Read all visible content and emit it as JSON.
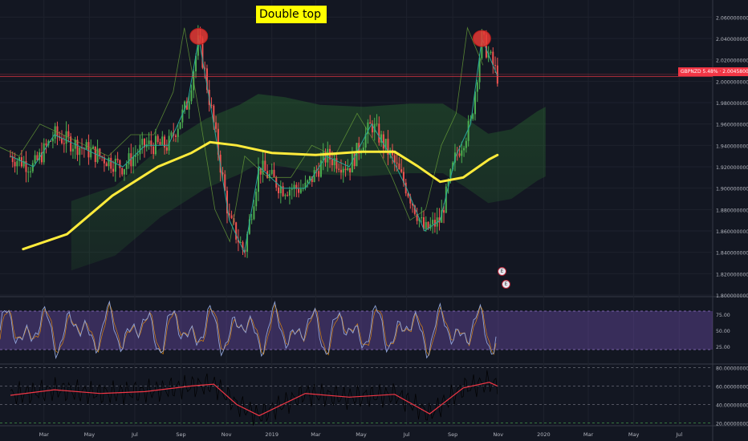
{
  "chart_data": [
    {
      "type": "line",
      "panel": "price",
      "title": "",
      "symbol_label": "GBPNZD 5.48% · 2.00458000",
      "last_value": 2.00458,
      "ylim": [
        1.8,
        2.07
      ],
      "y_tick_labels": [
        "2.060000000",
        "2.040000000",
        "2.020000000",
        "2.000000000",
        "1.980000000",
        "1.960000000",
        "1.940000000",
        "1.920000000",
        "1.900000000",
        "1.880000000",
        "1.860000000",
        "1.840000000",
        "1.820000000",
        "1.800000000"
      ],
      "x_tick_labels": [
        "Mar",
        "May",
        "Jul",
        "Sep",
        "Nov",
        "2019",
        "Mar",
        "May",
        "Jul",
        "Sep",
        "Nov",
        "2020",
        "Mar",
        "May",
        "Jul"
      ],
      "series": [
        {
          "role": "ema-long",
          "color": "#ffeb3b",
          "x": [
            "2018-02-01",
            "2018-04-01",
            "2018-06-01",
            "2018-08-01",
            "2018-09-15",
            "2018-10-10",
            "2018-11-15",
            "2019-01-01",
            "2019-03-01",
            "2019-05-01",
            "2019-06-15",
            "2019-07-15",
            "2019-08-15",
            "2019-09-15",
            "2019-10-20",
            "2019-10-31"
          ],
          "values": [
            1.843,
            1.857,
            1.893,
            1.92,
            1.933,
            1.943,
            1.94,
            1.933,
            1.931,
            1.934,
            1.934,
            1.921,
            1.906,
            1.91,
            1.927,
            1.931
          ]
        },
        {
          "role": "price",
          "color": "#26a69a",
          "x": [
            "2018-01-15",
            "2018-02-15",
            "2018-03-15",
            "2018-04-15",
            "2018-05-15",
            "2018-06-15",
            "2018-07-15",
            "2018-08-15",
            "2018-09-10",
            "2018-09-25",
            "2018-10-15",
            "2018-11-05",
            "2018-11-25",
            "2018-12-15",
            "2019-01-15",
            "2019-02-15",
            "2019-03-15",
            "2019-04-15",
            "2019-05-15",
            "2019-06-10",
            "2019-07-01",
            "2019-07-25",
            "2019-08-15",
            "2019-09-05",
            "2019-09-25",
            "2019-10-10",
            "2019-10-31"
          ],
          "values": [
            1.93,
            1.92,
            1.95,
            1.94,
            1.93,
            1.92,
            1.94,
            1.94,
            1.98,
            2.04,
            1.96,
            1.87,
            1.84,
            1.92,
            1.9,
            1.9,
            1.93,
            1.92,
            1.96,
            1.93,
            1.9,
            1.86,
            1.87,
            1.93,
            1.96,
            2.04,
            2.005
          ]
        }
      ],
      "annotations": [
        "Double top"
      ]
    },
    {
      "type": "line",
      "panel": "stochastic",
      "ylim": [
        0,
        100
      ],
      "y_tick_labels": [
        "75.00",
        "50.00",
        "25.00"
      ],
      "bands": [
        20,
        80
      ],
      "band_color": "#7e57c2"
    },
    {
      "type": "line",
      "panel": "rsi",
      "ylim": [
        18,
        82
      ],
      "y_tick_labels": [
        "80.000000000",
        "60.000000000",
        "40.000000000",
        "20.000000000"
      ],
      "color": "#f23645",
      "x": [
        "2018-01-15",
        "2018-03-15",
        "2018-05-15",
        "2018-07-15",
        "2018-09-15",
        "2018-10-15",
        "2018-11-15",
        "2018-12-15",
        "2019-02-15",
        "2019-04-15",
        "2019-06-15",
        "2019-08-01",
        "2019-09-15",
        "2019-10-20",
        "2019-10-31"
      ],
      "values": [
        50,
        56,
        52,
        54,
        60,
        62,
        40,
        28,
        52,
        48,
        51,
        30,
        58,
        64,
        60
      ]
    }
  ]
}
